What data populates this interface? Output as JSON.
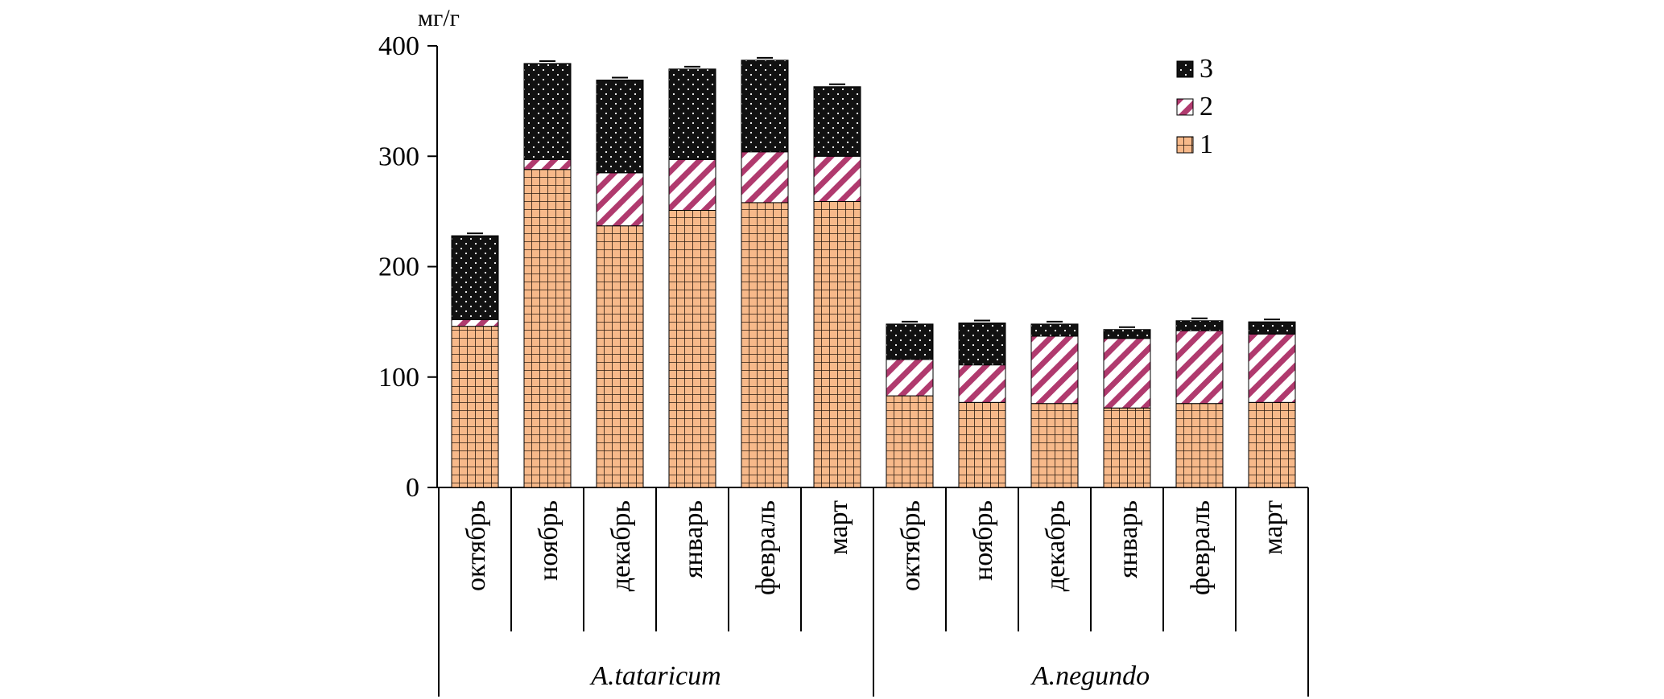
{
  "chart_data": {
    "type": "bar",
    "stacked": true,
    "unit_label": "мг/г",
    "ylim": [
      0,
      400
    ],
    "yticks": [
      0,
      100,
      200,
      300,
      400
    ],
    "groups": [
      {
        "label": "A.tataricum",
        "categories": [
          "октябрь",
          "ноябрь",
          "декабрь",
          "январь",
          "февраль",
          "март"
        ]
      },
      {
        "label": "A.negundo",
        "categories": [
          "октябрь",
          "ноябрь",
          "декабрь",
          "январь",
          "февраль",
          "март"
        ]
      }
    ],
    "series": [
      {
        "name": "1",
        "color": "#f7b98a",
        "pattern": "grid",
        "values": [
          146,
          288,
          237,
          251,
          258,
          259,
          83,
          77,
          76,
          72,
          76,
          77
        ]
      },
      {
        "name": "2",
        "color": "#b03a6e",
        "pattern": "diagonal",
        "values": [
          6,
          9,
          48,
          46,
          46,
          41,
          33,
          34,
          61,
          63,
          66,
          62
        ]
      },
      {
        "name": "3",
        "color": "#111111",
        "pattern": "dots",
        "values": [
          76,
          87,
          84,
          82,
          83,
          63,
          32,
          38,
          11,
          8,
          9,
          11
        ]
      }
    ],
    "legend_position": "top-right",
    "grid": false
  }
}
